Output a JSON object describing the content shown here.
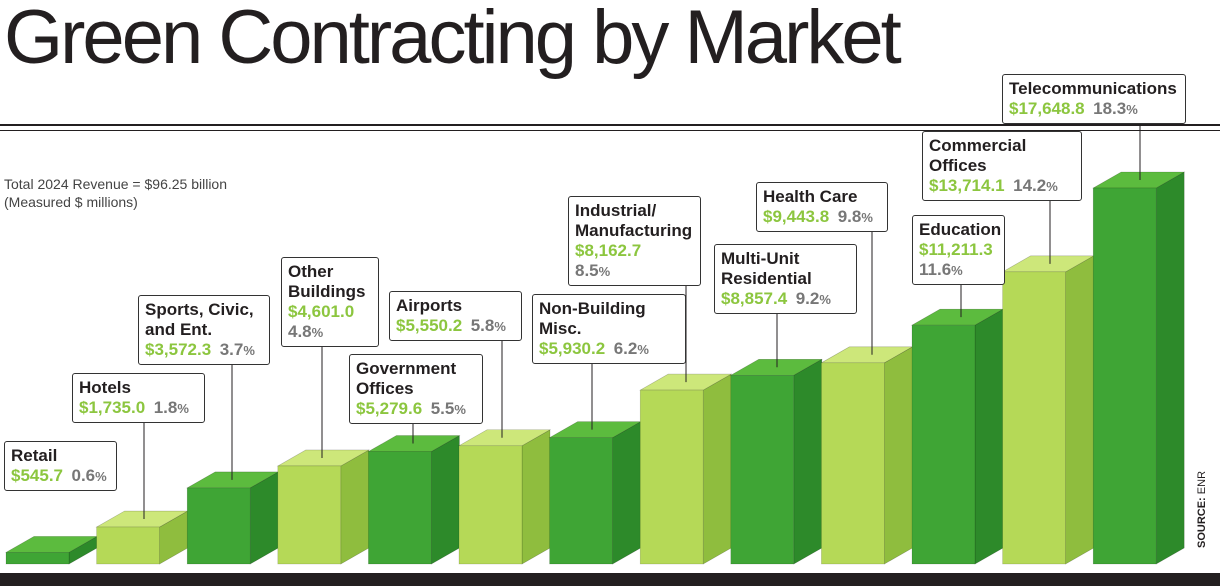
{
  "title": "Green Contracting by Market",
  "note": [
    "Total 2024 Revenue = $96.25 billion",
    "(Measured $ millions)"
  ],
  "source": {
    "label": "SOURCE:",
    "text": "ENR"
  },
  "colors": {
    "dark_green": "#3fa535",
    "light_green": "#b5d957",
    "label_value": "#8cc63f",
    "percent": "#777777",
    "ink": "#231f20"
  },
  "chart_data": {
    "type": "bar",
    "title": "Green Contracting by Market",
    "unit": "$ millions",
    "categories": [
      "Retail",
      "Hotels",
      "Sports, Civic, and Ent.",
      "Other Buildings",
      "Government Offices",
      "Airports",
      "Non-Building Misc.",
      "Industrial/ Manufacturing",
      "Multi-Unit Residential",
      "Health Care",
      "Education",
      "Commercial Offices",
      "Telecommunications"
    ],
    "values": [
      545.7,
      1735.0,
      3572.3,
      4601.0,
      5279.6,
      5550.2,
      5930.2,
      8162.7,
      8857.4,
      9443.8,
      11211.3,
      13714.1,
      17648.8
    ],
    "shares": [
      0.6,
      1.8,
      3.7,
      4.8,
      5.5,
      5.8,
      6.2,
      8.5,
      9.2,
      9.8,
      11.6,
      14.2,
      18.3
    ],
    "colors": [
      "dark",
      "light",
      "dark",
      "light",
      "dark",
      "light",
      "dark",
      "light",
      "dark",
      "light",
      "dark",
      "light",
      "dark"
    ],
    "labels": [
      {
        "lines": [
          "Retail"
        ],
        "value": "$545.7",
        "pct": "0.6"
      },
      {
        "lines": [
          "Hotels"
        ],
        "value": "$1,735.0",
        "pct": "1.8"
      },
      {
        "lines": [
          "Sports, Civic,",
          "and Ent."
        ],
        "value": "$3,572.3",
        "pct": "3.7"
      },
      {
        "lines": [
          "Other",
          "Buildings"
        ],
        "value": "$4,601.0",
        "pct": "4.8"
      },
      {
        "lines": [
          "Government",
          "Offices"
        ],
        "value": "$5,279.6",
        "pct": "5.5"
      },
      {
        "lines": [
          "Airports"
        ],
        "value": "$5,550.2",
        "pct": "5.8"
      },
      {
        "lines": [
          "Non-Building",
          "Misc."
        ],
        "value": "$5,930.2",
        "pct": "6.2"
      },
      {
        "lines": [
          "Industrial/",
          "Manufacturing"
        ],
        "value": "$8,162.7",
        "pct": "8.5"
      },
      {
        "lines": [
          "Multi-Unit",
          "Residential"
        ],
        "value": "$8,857.4",
        "pct": "9.2"
      },
      {
        "lines": [
          "Health Care"
        ],
        "value": "$9,443.8",
        "pct": "9.8"
      },
      {
        "lines": [
          "Education"
        ],
        "value": "$11,211.3",
        "pct": "11.6"
      },
      {
        "lines": [
          "Commercial",
          "Offices"
        ],
        "value": "$13,714.1",
        "pct": "14.2"
      },
      {
        "lines": [
          "Telecommunications"
        ],
        "value": "$17,648.8",
        "pct": "18.3"
      }
    ]
  }
}
